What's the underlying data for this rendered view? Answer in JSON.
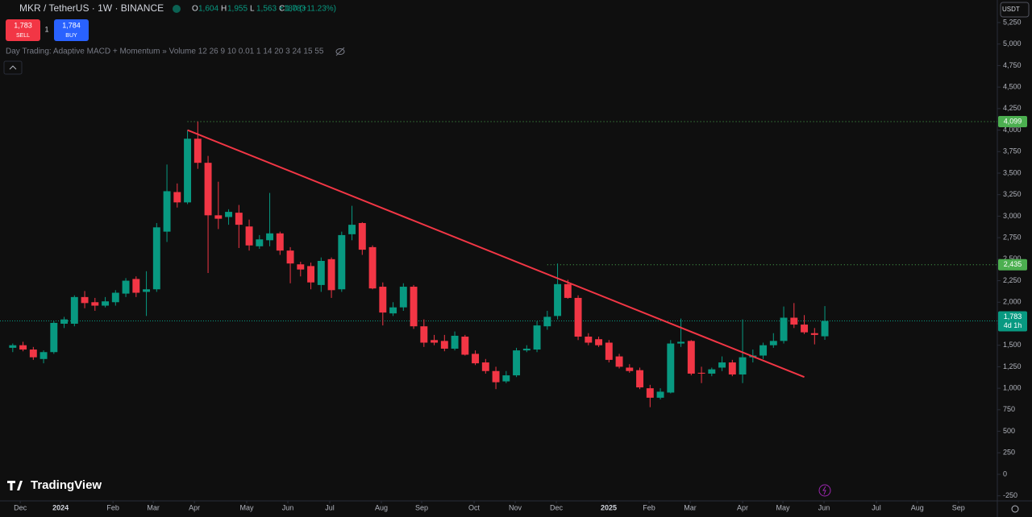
{
  "header": {
    "symbol": "MKR / TetherUS · 1W · BINANCE",
    "ohlc": [
      {
        "key": "O",
        "value": "1,604"
      },
      {
        "key": "H",
        "value": "1,955"
      },
      {
        "key": "L",
        "value": "1,563"
      },
      {
        "key": "C",
        "value": "1,783"
      }
    ],
    "change": "+180 (+11.23%)"
  },
  "trade": {
    "sell_price": "1,783",
    "sell": "SELL",
    "quantity": "1",
    "buy_price": "1,784",
    "buy": "BUY"
  },
  "indicator": "Day Trading: Adaptive MACD + Momentum » Volume 12 26 9 10 0.01 1 14 20 3 24 15 55",
  "currency": "USDT",
  "logo": "TradingView",
  "chart_data": {
    "type": "candlestick",
    "up_color": "#089981",
    "down_color": "#f23645",
    "open": [
      1470,
      1500,
      1450,
      1340,
      1420,
      1750,
      1750,
      2060,
      2000,
      1960,
      2000,
      2100,
      2270,
      2120,
      2150,
      2820,
      3280,
      3160,
      3900,
      3620,
      3010,
      2990,
      3040,
      2880,
      2650,
      2720,
      2800,
      2600,
      2440,
      2420,
      2200,
      2500,
      2150,
      2790,
      2920,
      2640,
      2180,
      1870,
      1940,
      2180,
      1720,
      1560,
      1550,
      1460,
      1600,
      1400,
      1300,
      1200,
      1080,
      1150,
      1440,
      1450,
      1720,
      1840,
      2210,
      2050,
      1600,
      1570,
      1530,
      1370,
      1240,
      1210,
      1000,
      890,
      950,
      1520,
      1550,
      1180,
      1170,
      1240,
      1300,
      1160,
      1360,
      1380,
      1500,
      1550,
      1820,
      1740,
      1640,
      1604
    ],
    "high": [
      1520,
      1540,
      1480,
      1440,
      1780,
      1830,
      2080,
      2130,
      2050,
      2060,
      2140,
      2280,
      2300,
      2360,
      2920,
      3600,
      3380,
      4000,
      4099,
      3700,
      3400,
      3080,
      3130,
      2960,
      2780,
      3270,
      2820,
      2640,
      2470,
      2460,
      2520,
      2520,
      2820,
      3120,
      2930,
      2660,
      2230,
      2000,
      2220,
      2200,
      1800,
      1620,
      1620,
      1660,
      1620,
      1440,
      1340,
      1250,
      1200,
      1470,
      1500,
      1780,
      1900,
      2450,
      2260,
      2080,
      1640,
      1600,
      1560,
      1400,
      1280,
      1240,
      1040,
      1000,
      1560,
      1810,
      1560,
      1250,
      1240,
      1370,
      1330,
      1800,
      1450,
      1530,
      1640,
      1950,
      1990,
      1850,
      1700,
      1955
    ],
    "low": [
      1420,
      1430,
      1330,
      1290,
      1400,
      1700,
      1720,
      1930,
      1900,
      1940,
      1960,
      2060,
      2060,
      1840,
      2120,
      2700,
      3100,
      3140,
      3550,
      2340,
      2850,
      2900,
      2630,
      2600,
      2620,
      2650,
      2550,
      2220,
      2300,
      2150,
      2120,
      2050,
      2120,
      2720,
      2550,
      2150,
      1730,
      1840,
      1900,
      1690,
      1480,
      1500,
      1430,
      1440,
      1380,
      1270,
      1170,
      990,
      1060,
      1130,
      1420,
      1420,
      1680,
      1800,
      2040,
      1560,
      1500,
      1480,
      1300,
      1230,
      1180,
      990,
      780,
      870,
      940,
      1480,
      1150,
      1060,
      1140,
      1200,
      1140,
      1060,
      1300,
      1340,
      1470,
      1520,
      1700,
      1630,
      1510,
      1563
    ],
    "close": [
      1500,
      1450,
      1360,
      1420,
      1760,
      1800,
      2060,
      1990,
      1960,
      2010,
      2110,
      2250,
      2110,
      2150,
      2870,
      3290,
      3160,
      3900,
      3620,
      3010,
      2970,
      3050,
      2900,
      2660,
      2730,
      2800,
      2600,
      2450,
      2380,
      2230,
      2480,
      2140,
      2780,
      2900,
      2610,
      2160,
      1880,
      1940,
      2180,
      1720,
      1530,
      1530,
      1460,
      1610,
      1390,
      1290,
      1200,
      1070,
      1150,
      1440,
      1460,
      1730,
      1830,
      2210,
      2050,
      1600,
      1530,
      1500,
      1330,
      1250,
      1200,
      1010,
      890,
      960,
      1520,
      1540,
      1170,
      1170,
      1220,
      1300,
      1160,
      1360,
      1380,
      1500,
      1550,
      1820,
      1740,
      1650,
      1620,
      1783
    ],
    "xlim": [
      -1.24,
      95.78
    ],
    "xticks": [
      {
        "value": 0.73,
        "label": "Dec"
      },
      {
        "value": 4.65,
        "label": "2024"
      },
      {
        "value": 9.75,
        "label": "Feb"
      },
      {
        "value": 13.67,
        "label": "Mar"
      },
      {
        "value": 17.67,
        "label": "Apr"
      },
      {
        "value": 22.76,
        "label": "May"
      },
      {
        "value": 26.76,
        "label": "Jun"
      },
      {
        "value": 30.84,
        "label": "Jul"
      },
      {
        "value": 35.86,
        "label": "Aug"
      },
      {
        "value": 39.78,
        "label": "Sep"
      },
      {
        "value": 44.88,
        "label": "Oct"
      },
      {
        "value": 48.88,
        "label": "Nov"
      },
      {
        "value": 52.88,
        "label": "Dec"
      },
      {
        "value": 57.98,
        "label": "2025"
      },
      {
        "value": 61.9,
        "label": "Feb"
      },
      {
        "value": 65.9,
        "label": "Mar"
      },
      {
        "value": 71,
        "label": "Apr"
      },
      {
        "value": 74.92,
        "label": "May"
      },
      {
        "value": 78.92,
        "label": "Jun"
      },
      {
        "value": 84.02,
        "label": "Jul"
      },
      {
        "value": 88,
        "label": "Aug"
      },
      {
        "value": 92,
        "label": "Sep"
      }
    ],
    "ylim": [
      -309,
      5512
    ],
    "yticks": [
      {
        "value": 5250,
        "label": "5,250"
      },
      {
        "value": 5000,
        "label": "5,000"
      },
      {
        "value": 4750,
        "label": "4,750"
      },
      {
        "value": 4500,
        "label": "4,500"
      },
      {
        "value": 4250,
        "label": "4,250"
      },
      {
        "value": 4000,
        "label": "4,000"
      },
      {
        "value": 3750,
        "label": "3,750"
      },
      {
        "value": 3500,
        "label": "3,500"
      },
      {
        "value": 3250,
        "label": "3,250"
      },
      {
        "value": 3000,
        "label": "3,000"
      },
      {
        "value": 2750,
        "label": "2,750"
      },
      {
        "value": 2500,
        "label": "2,500"
      },
      {
        "value": 2250,
        "label": "2,250"
      },
      {
        "value": 2000,
        "label": "2,000"
      },
      {
        "value": 1750,
        "label": "1,750"
      },
      {
        "value": 1500,
        "label": "1,500"
      },
      {
        "value": 1250,
        "label": "1,250"
      },
      {
        "value": 1000,
        "label": "1,000"
      },
      750,
      500,
      250,
      0,
      -250
    ],
    "trendline": {
      "x": [
        17,
        77
      ],
      "y": [
        4000,
        1130
      ],
      "color": "#f23645"
    },
    "levels": [
      {
        "value": 4099,
        "label": "4,099",
        "start": 17,
        "color": "#4caf50"
      },
      {
        "value": 2435,
        "label": "2,435",
        "start": 52,
        "color": "#4caf50"
      }
    ],
    "last_price": {
      "value": 1783,
      "label": "1,783",
      "countdown": "4d 1h",
      "color": "#089981"
    }
  }
}
